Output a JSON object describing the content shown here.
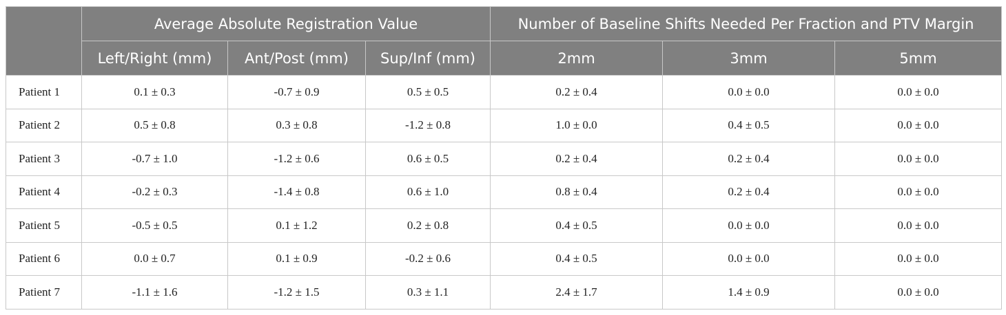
{
  "table": {
    "group_headers": [
      "Average Absolute Registration Value",
      "Number of Baseline Shifts Needed Per Fraction and PTV Margin"
    ],
    "column_headers": [
      "Left/Right (mm)",
      "Ant/Post (mm)",
      "Sup/Inf (mm)",
      "2mm",
      "3mm",
      "5mm"
    ],
    "rows": [
      [
        "Patient 1",
        "0.1 ± 0.3",
        "-0.7 ± 0.9",
        "0.5 ± 0.5",
        "0.2 ± 0.4",
        "0.0 ± 0.0",
        "0.0 ± 0.0"
      ],
      [
        "Patient 2",
        "0.5 ± 0.8",
        "0.3 ± 0.8",
        "-1.2 ± 0.8",
        "1.0 ± 0.0",
        "0.4 ± 0.5",
        "0.0 ± 0.0"
      ],
      [
        "Patient 3",
        "-0.7 ± 1.0",
        "-1.2 ± 0.6",
        "0.6 ± 0.5",
        "0.2 ± 0.4",
        "0.2 ± 0.4",
        "0.0 ± 0.0"
      ],
      [
        "Patient 4",
        "-0.2 ± 0.3",
        "-1.4 ± 0.8",
        "0.6 ± 1.0",
        "0.8 ± 0.4",
        "0.2 ± 0.4",
        "0.0 ± 0.0"
      ],
      [
        "Patient 5",
        "-0.5 ± 0.5",
        "0.1 ± 1.2",
        "0.2 ± 0.8",
        "0.4 ± 0.5",
        "0.0 ± 0.0",
        "0.0 ± 0.0"
      ],
      [
        "Patient 6",
        "0.0 ± 0.7",
        "0.1 ± 0.9",
        "-0.2 ± 0.6",
        "0.4 ± 0.5",
        "0.0 ± 0.0",
        "0.0 ± 0.0"
      ],
      [
        "Patient 7",
        "-1.1 ± 1.6",
        "-1.2 ± 1.5",
        "0.3 ± 1.1",
        "2.4 ± 1.7",
        "1.4 ± 0.9",
        "0.0 ± 0.0"
      ]
    ]
  }
}
